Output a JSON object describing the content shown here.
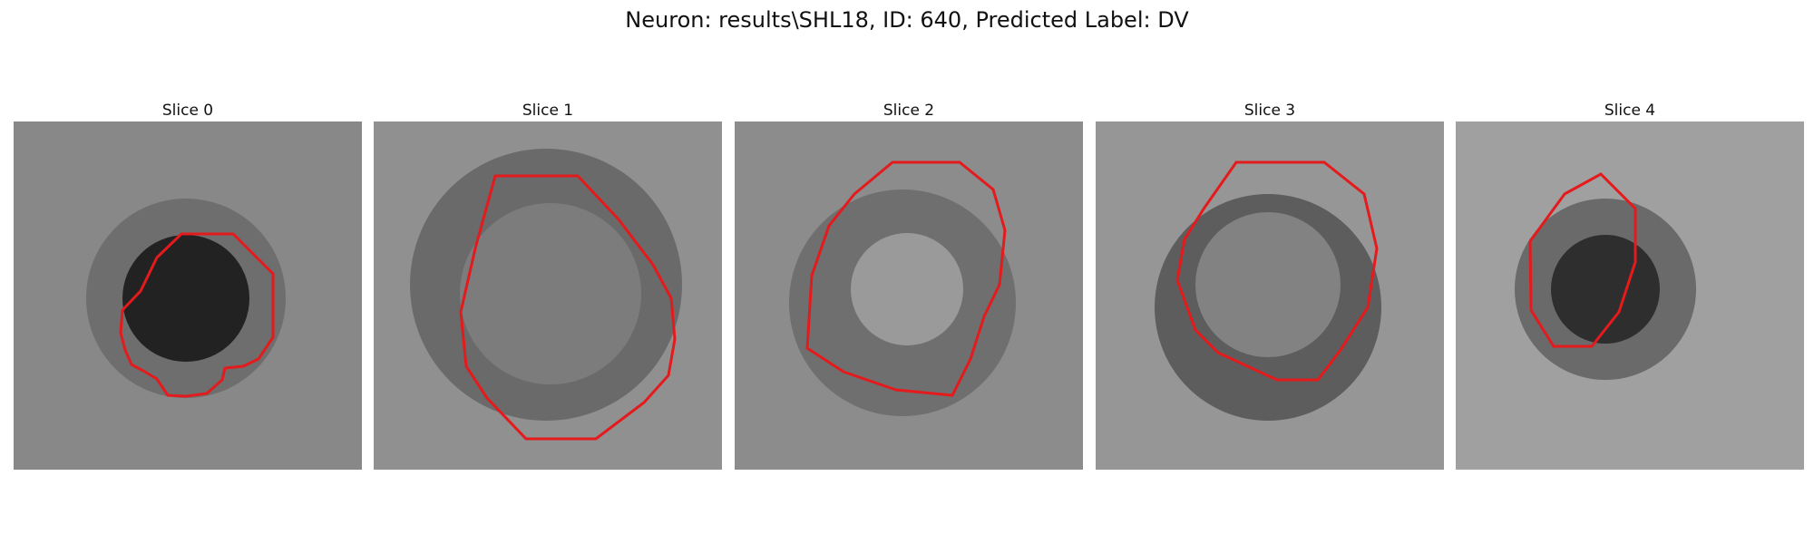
{
  "figure": {
    "title": "Neuron: results\\SHL18, ID: 640, Predicted Label: DV"
  },
  "panels": [
    {
      "title": "Slice 0"
    },
    {
      "title": "Slice 1"
    },
    {
      "title": "Slice 2"
    },
    {
      "title": "Slice 3"
    },
    {
      "title": "Slice 4"
    }
  ],
  "style": {
    "contour_color": "#e41a1c"
  }
}
